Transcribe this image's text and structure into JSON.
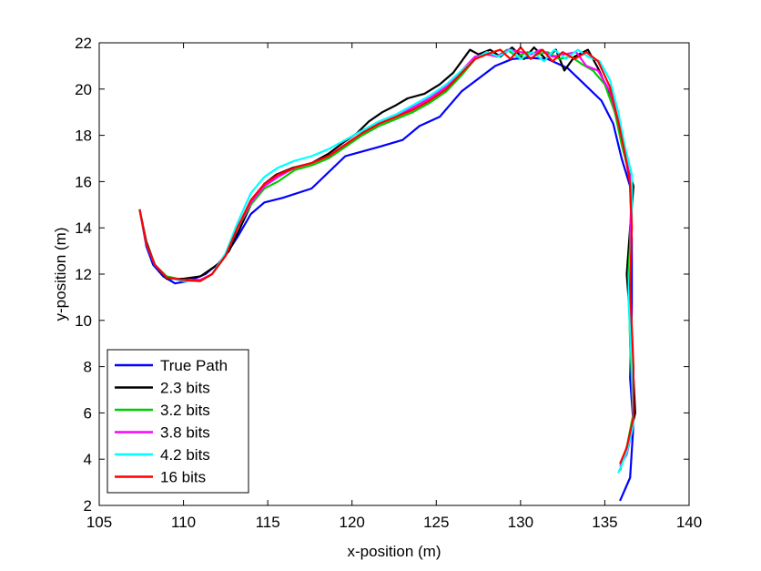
{
  "chart_data": {
    "type": "line",
    "title": "",
    "xlabel": "x-position (m)",
    "ylabel": "y-position (m)",
    "xlim": [
      105,
      140
    ],
    "ylim": [
      2,
      22
    ],
    "xticks": [
      105,
      110,
      115,
      120,
      125,
      130,
      135,
      140
    ],
    "yticks": [
      2,
      4,
      6,
      8,
      10,
      12,
      14,
      16,
      18,
      20,
      22
    ],
    "grid": false,
    "legend_position": "bottom-left",
    "series": [
      {
        "name": "True Path",
        "color": "#0000ff",
        "points": [
          [
            107.4,
            14.8
          ],
          [
            107.8,
            13.2
          ],
          [
            108.2,
            12.4
          ],
          [
            108.8,
            11.9
          ],
          [
            109.5,
            11.6
          ],
          [
            110.3,
            11.7
          ],
          [
            111.3,
            12.0
          ],
          [
            112.3,
            12.6
          ],
          [
            113.2,
            13.6
          ],
          [
            114.0,
            14.6
          ],
          [
            114.8,
            15.1
          ],
          [
            115.9,
            15.3
          ],
          [
            117.6,
            15.7
          ],
          [
            119.6,
            17.1
          ],
          [
            121.6,
            17.5
          ],
          [
            123.0,
            17.8
          ],
          [
            124.0,
            18.4
          ],
          [
            125.2,
            18.8
          ],
          [
            126.5,
            19.9
          ],
          [
            128.5,
            21.0
          ],
          [
            129.5,
            21.3
          ],
          [
            130.5,
            21.35
          ],
          [
            131.6,
            21.3
          ],
          [
            132.8,
            20.9
          ],
          [
            133.8,
            20.2
          ],
          [
            134.8,
            19.5
          ],
          [
            135.5,
            18.5
          ],
          [
            136.0,
            17.0
          ],
          [
            136.5,
            15.8
          ],
          [
            136.6,
            13.5
          ],
          [
            136.6,
            10.5
          ],
          [
            136.5,
            7.5
          ],
          [
            136.7,
            5.5
          ],
          [
            136.5,
            3.2
          ],
          [
            135.9,
            2.2
          ]
        ]
      },
      {
        "name": "2.3 bits",
        "color": "#000000",
        "points": [
          [
            107.4,
            14.8
          ],
          [
            107.8,
            13.4
          ],
          [
            108.3,
            12.4
          ],
          [
            109.0,
            11.8
          ],
          [
            110.0,
            11.8
          ],
          [
            111.0,
            11.9
          ],
          [
            112.0,
            12.4
          ],
          [
            112.7,
            13.0
          ],
          [
            113.3,
            13.9
          ],
          [
            114.0,
            15.0
          ],
          [
            114.8,
            15.9
          ],
          [
            115.5,
            16.3
          ],
          [
            116.5,
            16.6
          ],
          [
            117.6,
            16.8
          ],
          [
            118.6,
            17.2
          ],
          [
            119.5,
            17.7
          ],
          [
            120.3,
            18.1
          ],
          [
            121.0,
            18.6
          ],
          [
            121.8,
            19.0
          ],
          [
            122.6,
            19.3
          ],
          [
            123.3,
            19.6
          ],
          [
            124.3,
            19.8
          ],
          [
            125.2,
            20.2
          ],
          [
            126.0,
            20.7
          ],
          [
            126.5,
            21.2
          ],
          [
            127.0,
            21.7
          ],
          [
            127.5,
            21.5
          ],
          [
            128.2,
            21.7
          ],
          [
            128.8,
            21.4
          ],
          [
            129.5,
            21.8
          ],
          [
            130.2,
            21.3
          ],
          [
            130.8,
            21.8
          ],
          [
            131.5,
            21.3
          ],
          [
            132.1,
            21.7
          ],
          [
            132.6,
            20.8
          ],
          [
            133.2,
            21.4
          ],
          [
            134.0,
            21.7
          ],
          [
            134.6,
            20.9
          ],
          [
            135.1,
            20.1
          ],
          [
            135.6,
            19.0
          ],
          [
            136.0,
            17.8
          ],
          [
            136.4,
            16.5
          ],
          [
            136.7,
            15.8
          ],
          [
            136.5,
            14.0
          ],
          [
            136.3,
            12.0
          ],
          [
            136.6,
            9.0
          ],
          [
            136.8,
            6.0
          ],
          [
            136.5,
            5.0
          ],
          [
            136.0,
            3.8
          ]
        ]
      },
      {
        "name": "3.2 bits",
        "color": "#00cc00",
        "points": [
          [
            107.4,
            14.8
          ],
          [
            107.8,
            13.3
          ],
          [
            108.3,
            12.4
          ],
          [
            109.0,
            11.9
          ],
          [
            110.0,
            11.75
          ],
          [
            111.0,
            11.7
          ],
          [
            111.7,
            12.0
          ],
          [
            112.5,
            12.8
          ],
          [
            113.2,
            14.0
          ],
          [
            114.0,
            15.0
          ],
          [
            114.8,
            15.7
          ],
          [
            115.6,
            16.0
          ],
          [
            116.6,
            16.5
          ],
          [
            117.6,
            16.7
          ],
          [
            118.6,
            17.0
          ],
          [
            119.6,
            17.5
          ],
          [
            120.6,
            18.0
          ],
          [
            121.6,
            18.4
          ],
          [
            122.6,
            18.7
          ],
          [
            123.6,
            19.0
          ],
          [
            124.6,
            19.4
          ],
          [
            125.6,
            19.9
          ],
          [
            126.5,
            20.6
          ],
          [
            127.3,
            21.3
          ],
          [
            128.0,
            21.6
          ],
          [
            128.6,
            21.4
          ],
          [
            129.2,
            21.7
          ],
          [
            129.8,
            21.4
          ],
          [
            130.4,
            21.6
          ],
          [
            131.0,
            21.5
          ],
          [
            131.6,
            21.6
          ],
          [
            132.3,
            21.3
          ],
          [
            133.0,
            21.4
          ],
          [
            133.6,
            21.1
          ],
          [
            134.3,
            20.8
          ],
          [
            135.0,
            20.2
          ],
          [
            135.6,
            19.0
          ],
          [
            136.0,
            17.6
          ],
          [
            136.5,
            16.2
          ],
          [
            136.6,
            14.5
          ],
          [
            136.4,
            12.0
          ],
          [
            136.5,
            9.0
          ],
          [
            136.7,
            6.0
          ],
          [
            136.3,
            4.5
          ],
          [
            135.9,
            3.5
          ]
        ]
      },
      {
        "name": "3.8 bits",
        "color": "#ff00ff",
        "points": [
          [
            107.4,
            14.8
          ],
          [
            107.8,
            13.3
          ],
          [
            108.3,
            12.4
          ],
          [
            109.0,
            11.85
          ],
          [
            110.0,
            11.75
          ],
          [
            111.0,
            11.75
          ],
          [
            111.7,
            12.0
          ],
          [
            112.5,
            12.8
          ],
          [
            113.2,
            14.0
          ],
          [
            114.0,
            15.1
          ],
          [
            114.8,
            15.8
          ],
          [
            115.6,
            16.2
          ],
          [
            116.6,
            16.6
          ],
          [
            117.6,
            16.8
          ],
          [
            118.6,
            17.1
          ],
          [
            119.6,
            17.6
          ],
          [
            120.6,
            18.1
          ],
          [
            121.6,
            18.5
          ],
          [
            122.6,
            18.8
          ],
          [
            123.6,
            19.2
          ],
          [
            124.6,
            19.6
          ],
          [
            125.6,
            20.1
          ],
          [
            126.5,
            20.8
          ],
          [
            127.3,
            21.4
          ],
          [
            128.0,
            21.5
          ],
          [
            128.6,
            21.4
          ],
          [
            129.3,
            21.7
          ],
          [
            130.0,
            21.6
          ],
          [
            130.6,
            21.5
          ],
          [
            131.2,
            21.7
          ],
          [
            131.9,
            21.4
          ],
          [
            132.6,
            21.5
          ],
          [
            133.3,
            21.6
          ],
          [
            133.9,
            21.0
          ],
          [
            134.6,
            20.8
          ],
          [
            135.3,
            19.9
          ],
          [
            135.8,
            18.6
          ],
          [
            136.2,
            17.2
          ],
          [
            136.6,
            15.8
          ],
          [
            136.5,
            13.8
          ],
          [
            136.5,
            11.0
          ],
          [
            136.6,
            8.0
          ],
          [
            136.7,
            5.5
          ],
          [
            136.3,
            4.2
          ],
          [
            135.9,
            3.7
          ]
        ]
      },
      {
        "name": "4.2 bits",
        "color": "#00ffff",
        "points": [
          [
            107.4,
            14.8
          ],
          [
            107.8,
            13.3
          ],
          [
            108.3,
            12.4
          ],
          [
            109.0,
            11.85
          ],
          [
            110.0,
            11.7
          ],
          [
            111.0,
            11.7
          ],
          [
            111.7,
            12.0
          ],
          [
            112.5,
            12.9
          ],
          [
            113.2,
            14.2
          ],
          [
            114.0,
            15.5
          ],
          [
            114.8,
            16.2
          ],
          [
            115.6,
            16.6
          ],
          [
            116.6,
            16.9
          ],
          [
            117.6,
            17.1
          ],
          [
            118.6,
            17.4
          ],
          [
            119.6,
            17.8
          ],
          [
            120.6,
            18.2
          ],
          [
            121.6,
            18.6
          ],
          [
            122.6,
            18.9
          ],
          [
            123.6,
            19.3
          ],
          [
            124.6,
            19.7
          ],
          [
            125.6,
            20.2
          ],
          [
            126.5,
            20.8
          ],
          [
            127.3,
            21.3
          ],
          [
            128.0,
            21.6
          ],
          [
            128.7,
            21.4
          ],
          [
            129.4,
            21.7
          ],
          [
            130.0,
            21.3
          ],
          [
            130.7,
            21.6
          ],
          [
            131.4,
            21.2
          ],
          [
            132.0,
            21.7
          ],
          [
            132.7,
            21.3
          ],
          [
            133.4,
            21.7
          ],
          [
            134.0,
            21.4
          ],
          [
            134.7,
            21.2
          ],
          [
            135.3,
            20.4
          ],
          [
            135.8,
            19.0
          ],
          [
            136.2,
            17.5
          ],
          [
            136.6,
            16.3
          ],
          [
            136.6,
            14.0
          ],
          [
            136.4,
            11.0
          ],
          [
            136.6,
            8.0
          ],
          [
            136.7,
            5.5
          ],
          [
            136.3,
            4.3
          ],
          [
            135.8,
            3.4
          ]
        ]
      },
      {
        "name": "16 bits",
        "color": "#ff0000",
        "points": [
          [
            107.4,
            14.8
          ],
          [
            107.8,
            13.3
          ],
          [
            108.3,
            12.4
          ],
          [
            109.0,
            11.85
          ],
          [
            110.0,
            11.75
          ],
          [
            111.0,
            11.7
          ],
          [
            111.7,
            12.0
          ],
          [
            112.5,
            12.8
          ],
          [
            113.2,
            14.0
          ],
          [
            114.0,
            15.2
          ],
          [
            114.8,
            15.9
          ],
          [
            115.6,
            16.3
          ],
          [
            116.6,
            16.6
          ],
          [
            117.6,
            16.8
          ],
          [
            118.6,
            17.1
          ],
          [
            119.6,
            17.6
          ],
          [
            120.6,
            18.1
          ],
          [
            121.6,
            18.5
          ],
          [
            122.6,
            18.8
          ],
          [
            123.6,
            19.1
          ],
          [
            124.6,
            19.5
          ],
          [
            125.6,
            20.0
          ],
          [
            126.5,
            20.7
          ],
          [
            127.3,
            21.3
          ],
          [
            128.0,
            21.5
          ],
          [
            128.8,
            21.7
          ],
          [
            129.4,
            21.3
          ],
          [
            130.0,
            21.8
          ],
          [
            130.6,
            21.3
          ],
          [
            131.3,
            21.7
          ],
          [
            131.9,
            21.2
          ],
          [
            132.5,
            21.6
          ],
          [
            133.2,
            21.3
          ],
          [
            133.9,
            21.6
          ],
          [
            134.6,
            21.2
          ],
          [
            135.3,
            20.1
          ],
          [
            135.8,
            18.6
          ],
          [
            136.2,
            17.2
          ],
          [
            136.5,
            15.9
          ],
          [
            136.6,
            14.0
          ],
          [
            136.5,
            11.5
          ],
          [
            136.7,
            8.0
          ],
          [
            136.7,
            5.8
          ],
          [
            136.3,
            4.5
          ],
          [
            135.9,
            3.8
          ]
        ]
      }
    ]
  }
}
